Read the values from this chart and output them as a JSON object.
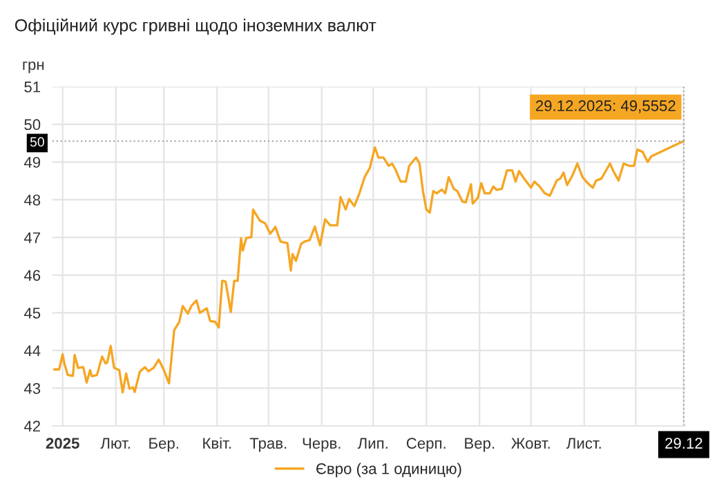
{
  "chart_data": {
    "type": "line",
    "title": "Офіційний курс гривні щодо іноземних валют",
    "ylabel": "грн",
    "x": [
      "2024-12-27",
      "2024-12-30",
      "2025-01-01",
      "2025-01-02",
      "2025-01-04",
      "2025-01-07",
      "2025-01-08",
      "2025-01-10",
      "2025-01-13",
      "2025-01-15",
      "2025-01-17",
      "2025-01-18",
      "2025-01-21",
      "2025-01-24",
      "2025-01-26",
      "2025-01-27",
      "2025-01-29",
      "2025-01-31",
      "2025-02-03",
      "2025-02-05",
      "2025-02-07",
      "2025-02-09",
      "2025-02-11",
      "2025-02-12",
      "2025-02-15",
      "2025-02-18",
      "2025-02-20",
      "2025-02-23",
      "2025-02-26",
      "2025-03-01",
      "2025-03-04",
      "2025-03-07",
      "2025-03-10",
      "2025-03-12",
      "2025-03-15",
      "2025-03-17",
      "2025-03-20",
      "2025-03-22",
      "2025-03-26",
      "2025-03-28",
      "2025-03-31",
      "2025-04-02",
      "2025-04-04",
      "2025-04-06",
      "2025-04-09",
      "2025-04-11",
      "2025-04-13",
      "2025-04-15",
      "2025-04-16",
      "2025-04-18",
      "2025-04-21",
      "2025-04-22",
      "2025-04-26",
      "2025-04-29",
      "2025-05-02",
      "2025-05-05",
      "2025-05-08",
      "2025-05-12",
      "2025-05-14",
      "2025-05-15",
      "2025-05-17",
      "2025-05-20",
      "2025-05-22",
      "2025-05-25",
      "2025-05-28",
      "2025-05-31",
      "2025-06-03",
      "2025-06-06",
      "2025-06-10",
      "2025-06-12",
      "2025-06-15",
      "2025-06-17",
      "2025-06-20",
      "2025-06-23",
      "2025-06-26",
      "2025-06-29",
      "2025-07-02",
      "2025-07-04",
      "2025-07-07",
      "2025-07-10",
      "2025-07-12",
      "2025-07-14",
      "2025-07-17",
      "2025-07-20",
      "2025-07-22",
      "2025-07-26",
      "2025-07-28",
      "2025-07-30",
      "2025-08-01",
      "2025-08-03",
      "2025-08-05",
      "2025-08-07",
      "2025-08-10",
      "2025-08-12",
      "2025-08-14",
      "2025-08-17",
      "2025-08-19",
      "2025-08-22",
      "2025-08-24",
      "2025-08-27",
      "2025-08-28",
      "2025-08-31",
      "2025-09-02",
      "2025-09-04",
      "2025-09-07",
      "2025-09-09",
      "2025-09-11",
      "2025-09-14",
      "2025-09-17",
      "2025-09-20",
      "2025-09-22",
      "2025-09-24",
      "2025-09-27",
      "2025-10-01",
      "2025-10-03",
      "2025-10-06",
      "2025-10-09",
      "2025-10-12",
      "2025-10-16",
      "2025-10-18",
      "2025-10-20",
      "2025-10-22",
      "2025-10-25",
      "2025-10-28",
      "2025-10-31",
      "2025-11-03",
      "2025-11-06",
      "2025-11-08",
      "2025-11-11",
      "2025-11-14",
      "2025-11-16",
      "2025-11-18",
      "2025-11-21",
      "2025-11-24",
      "2025-11-27",
      "2025-11-30",
      "2025-12-02",
      "2025-12-05",
      "2025-12-08",
      "2025-12-10",
      "2025-12-29"
    ],
    "series": [
      {
        "name": "Євро (за 1 одиницю)",
        "color": "#f5a623",
        "values": [
          43.5,
          43.5,
          43.9,
          43.66,
          43.35,
          43.33,
          43.88,
          43.54,
          43.56,
          43.15,
          43.48,
          43.32,
          43.35,
          43.84,
          43.66,
          43.68,
          44.12,
          43.54,
          43.48,
          42.89,
          43.39,
          42.99,
          43.02,
          42.9,
          43.44,
          43.56,
          43.45,
          43.54,
          43.76,
          43.48,
          43.13,
          44.54,
          44.76,
          45.18,
          44.98,
          45.18,
          45.33,
          45.0,
          45.12,
          44.78,
          44.76,
          44.61,
          45.85,
          45.83,
          45.02,
          45.85,
          45.85,
          46.98,
          46.65,
          46.98,
          47.01,
          47.74,
          47.44,
          47.38,
          47.1,
          47.28,
          46.89,
          46.85,
          46.12,
          46.56,
          46.38,
          46.83,
          46.89,
          46.93,
          47.29,
          46.79,
          47.48,
          47.32,
          47.32,
          48.07,
          47.74,
          48.02,
          47.83,
          48.17,
          48.6,
          48.84,
          49.39,
          49.12,
          49.12,
          48.9,
          48.96,
          48.8,
          48.48,
          48.48,
          48.9,
          49.12,
          48.96,
          48.23,
          47.74,
          47.66,
          48.23,
          48.17,
          48.27,
          48.17,
          48.6,
          48.29,
          48.23,
          47.95,
          47.93,
          48.41,
          47.9,
          48.05,
          48.44,
          48.17,
          48.17,
          48.35,
          48.26,
          48.29,
          48.78,
          48.78,
          48.48,
          48.76,
          48.56,
          48.32,
          48.48,
          48.35,
          48.17,
          48.11,
          48.51,
          48.56,
          48.72,
          48.39,
          48.63,
          48.96,
          48.6,
          48.44,
          48.32,
          48.51,
          48.56,
          48.8,
          48.96,
          48.76,
          48.51,
          48.96,
          48.9,
          48.9,
          49.33,
          49.27,
          49.0,
          49.15,
          49.5552
        ]
      }
    ],
    "xlim": [
      "2024-12-26",
      "2025-12-30"
    ],
    "ylim": [
      42,
      51
    ],
    "yticks": [
      42,
      43,
      44,
      45,
      46,
      47,
      48,
      49,
      50,
      51
    ],
    "xticks": [
      {
        "value": "2025-01-01",
        "label": "2025"
      },
      {
        "value": "2025-02-01",
        "label": "Лют."
      },
      {
        "value": "2025-03-01",
        "label": "Бер."
      },
      {
        "value": "2025-04-01",
        "label": "Квіт."
      },
      {
        "value": "2025-05-01",
        "label": "Трав."
      },
      {
        "value": "2025-06-01",
        "label": "Черв."
      },
      {
        "value": "2025-07-01",
        "label": "Лип."
      },
      {
        "value": "2025-08-01",
        "label": "Серп."
      },
      {
        "value": "2025-09-01",
        "label": "Вер."
      },
      {
        "value": "2025-10-01",
        "label": "Жовт."
      },
      {
        "value": "2025-11-01",
        "label": "Лист."
      },
      {
        "value": "2025-12-01",
        "label": null
      },
      {
        "value": "2025-12-29",
        "label": "29.12"
      }
    ],
    "ref_lines": [
      {
        "axis": "y",
        "value": 49.5552,
        "label": "50",
        "line_style": "dotted",
        "color": "#aaaaaa"
      },
      {
        "axis": "x",
        "value": "2025-12-29",
        "line_style": "dotted",
        "color": "#aaaaaa"
      }
    ],
    "annotations": [
      {
        "text": "29.12.2025: 49,5552",
        "x": "2025-12-29",
        "y": 49.5552
      }
    ],
    "grid": true,
    "legend": "bottom",
    "marker": "none",
    "line_style": "solid"
  }
}
